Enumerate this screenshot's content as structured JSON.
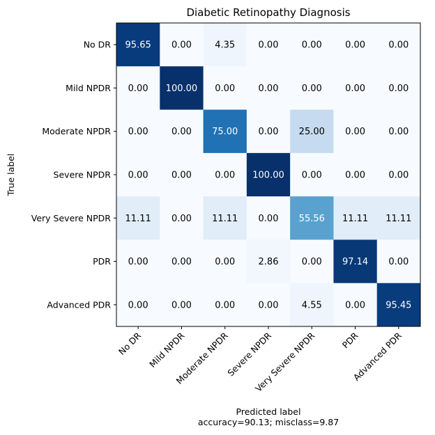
{
  "chart_data": {
    "type": "heatmap",
    "title": "Diabetic Retinopathy Diagnosis",
    "xlabel": "Predicted label",
    "xlabel_sub": "accuracy=90.13; misclass=9.87",
    "ylabel": "True label",
    "x_categories": [
      "No DR",
      "Mild NPDR",
      "Moderate NPDR",
      "Severe NPDR",
      "Very Severe NPDR",
      "PDR",
      "Advanced PDR"
    ],
    "y_categories": [
      "No DR",
      "Mild NPDR",
      "Moderate NPDR",
      "Severe NPDR",
      "Very Severe NPDR",
      "PDR",
      "Advanced PDR"
    ],
    "values": [
      [
        95.65,
        0.0,
        4.35,
        0.0,
        0.0,
        0.0,
        0.0
      ],
      [
        0.0,
        100.0,
        0.0,
        0.0,
        0.0,
        0.0,
        0.0
      ],
      [
        0.0,
        0.0,
        75.0,
        0.0,
        25.0,
        0.0,
        0.0
      ],
      [
        0.0,
        0.0,
        0.0,
        100.0,
        0.0,
        0.0,
        0.0
      ],
      [
        11.11,
        0.0,
        11.11,
        0.0,
        55.56,
        11.11,
        11.11
      ],
      [
        0.0,
        0.0,
        0.0,
        2.86,
        0.0,
        97.14,
        0.0
      ],
      [
        0.0,
        0.0,
        0.0,
        0.0,
        4.55,
        0.0,
        95.45
      ]
    ],
    "value_range": [
      0,
      100
    ],
    "colormap": "Blues",
    "grid": false
  }
}
